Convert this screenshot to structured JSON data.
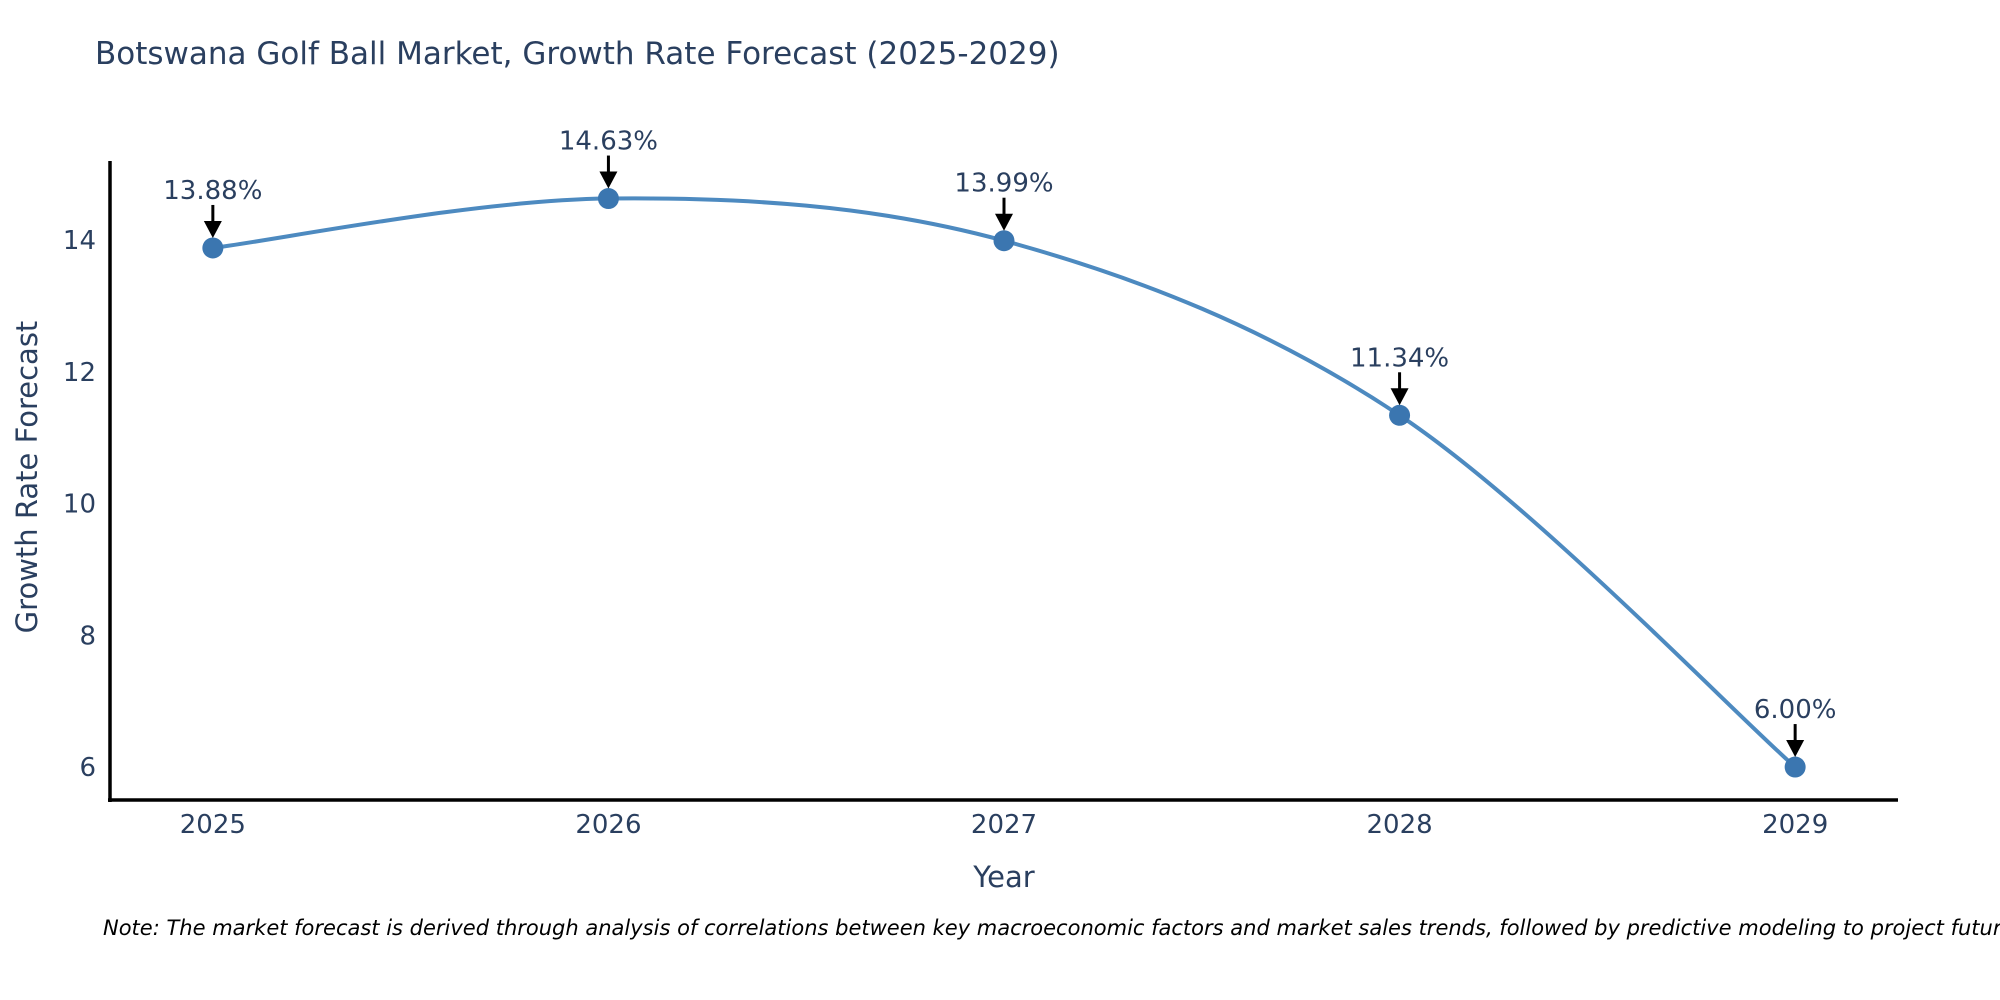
{
  "title": "Botswana Golf Ball Market, Growth Rate Forecast (2025-2029)",
  "note": "Note: The market forecast is derived through analysis of correlations between key macroeconomic factors and market sales trends, followed by predictive modeling to project future sales.",
  "colors": {
    "background": "#ffffff",
    "title_text": "#2a3f5f",
    "axis_text": "#2a3f5f",
    "axis_line": "#000000",
    "line": "#4d8ac0",
    "marker": "#3b76b0",
    "annotation_text": "#2a3f5f",
    "arrow": "#000000",
    "note_text": "#000000"
  },
  "chart_data": {
    "type": "line",
    "title": "Botswana Golf Ball Market, Growth Rate Forecast (2025-2029)",
    "xlabel": "Year",
    "ylabel": "Growth Rate Forecast",
    "x": [
      2025,
      2026,
      2027,
      2028,
      2029
    ],
    "values": [
      13.88,
      14.63,
      13.99,
      11.34,
      6.0
    ],
    "point_labels": [
      "13.88%",
      "14.63%",
      "13.99%",
      "11.34%",
      "6.00%"
    ],
    "yticks": [
      6,
      8,
      10,
      12,
      14
    ],
    "xlim": [
      2024.74,
      2029.26
    ],
    "ylim": [
      5.5,
      15.2
    ],
    "grid": false,
    "legend": "none",
    "line_shape": "spline",
    "marker_style": "circle"
  }
}
